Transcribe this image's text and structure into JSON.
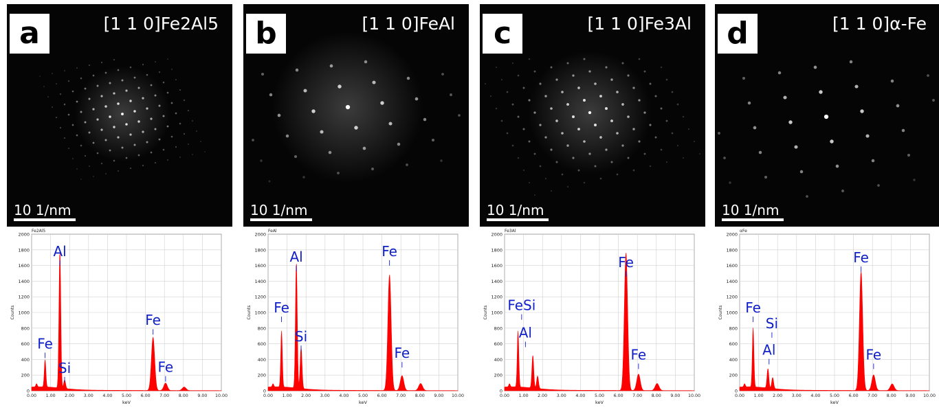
{
  "panels": [
    {
      "letter": "a",
      "zone_axis": "[1 1 0]Fe2Al5",
      "scale_bar": "10 1/nm",
      "eds_title": "Fe2Al5",
      "y_label": "Counts",
      "x_label": "keV",
      "labels": [
        {
          "text": "Al",
          "kev": 1.49,
          "counts": 1720
        },
        {
          "text": "Fe",
          "kev": 0.71,
          "counts": 540
        },
        {
          "text": "Si",
          "kev": 1.74,
          "counts": 230
        },
        {
          "text": "Fe",
          "kev": 6.4,
          "counts": 840
        },
        {
          "text": "Fe",
          "kev": 7.06,
          "counts": 240
        }
      ],
      "chart_data": {
        "type": "area",
        "xlim": [
          0,
          10
        ],
        "ylim": [
          0,
          2000
        ],
        "x_ticks": [
          "0.00",
          "1.00",
          "2.00",
          "3.00",
          "4.00",
          "5.00",
          "6.00",
          "7.00",
          "8.00",
          "9.00",
          "10.00"
        ],
        "y_ticks": [
          "0",
          "200",
          "400",
          "600",
          "800",
          "1000",
          "1200",
          "1400",
          "1600",
          "1800",
          "2000"
        ],
        "peaks": [
          {
            "kev": 0.26,
            "counts": 40
          },
          {
            "kev": 0.71,
            "counts": 350
          },
          {
            "kev": 1.49,
            "counts": 1760
          },
          {
            "kev": 1.74,
            "counts": 110
          },
          {
            "kev": 6.4,
            "counts": 680
          },
          {
            "kev": 7.06,
            "counts": 95
          },
          {
            "kev": 8.04,
            "counts": 45
          }
        ]
      }
    },
    {
      "letter": "b",
      "zone_axis": "[1 1 0]FeAl",
      "scale_bar": "10 1/nm",
      "eds_title": "FeAl",
      "y_label": "Counts",
      "x_label": "keV",
      "labels": [
        {
          "text": "Al",
          "kev": 1.49,
          "counts": 1650
        },
        {
          "text": "Fe",
          "kev": 0.71,
          "counts": 1000
        },
        {
          "text": "Si",
          "kev": 1.74,
          "counts": 630
        },
        {
          "text": "Fe",
          "kev": 6.4,
          "counts": 1720
        },
        {
          "text": "Fe",
          "kev": 7.06,
          "counts": 420
        }
      ],
      "chart_data": {
        "type": "area",
        "xlim": [
          0,
          10
        ],
        "ylim": [
          0,
          2000
        ],
        "x_ticks": [
          "0.00",
          "1.00",
          "2.00",
          "3.00",
          "4.00",
          "5.00",
          "6.00",
          "7.00",
          "8.00",
          "9.00",
          "10.00"
        ],
        "y_ticks": [
          "0",
          "200",
          "400",
          "600",
          "800",
          "1000",
          "1200",
          "1400",
          "1600",
          "1800",
          "2000"
        ],
        "peaks": [
          {
            "kev": 0.26,
            "counts": 40
          },
          {
            "kev": 0.71,
            "counts": 720
          },
          {
            "kev": 1.49,
            "counts": 1620
          },
          {
            "kev": 1.74,
            "counts": 530
          },
          {
            "kev": 6.4,
            "counts": 1480
          },
          {
            "kev": 7.06,
            "counts": 190
          },
          {
            "kev": 8.04,
            "counts": 90
          }
        ]
      }
    },
    {
      "letter": "c",
      "zone_axis": "[1 1 0]Fe3Al",
      "scale_bar": "10 1/nm",
      "eds_title": "Fe3Al",
      "y_label": "Counts",
      "x_label": "keV",
      "labels": [
        {
          "text": "FeSi",
          "kev": 0.9,
          "counts": 1030
        },
        {
          "text": "Al",
          "kev": 1.1,
          "counts": 680
        },
        {
          "text": "Fe",
          "kev": 6.4,
          "counts": 1580
        },
        {
          "text": "Fe",
          "kev": 7.06,
          "counts": 400
        }
      ],
      "chart_data": {
        "type": "area",
        "xlim": [
          0,
          10
        ],
        "ylim": [
          0,
          2000
        ],
        "x_ticks": [
          "0.00",
          "1.00",
          "2.00",
          "3.00",
          "4.00",
          "5.00",
          "6.00",
          "7.00",
          "8.00",
          "9.00",
          "10.00"
        ],
        "y_ticks": [
          "0",
          "200",
          "400",
          "600",
          "800",
          "1000",
          "1200",
          "1400",
          "1600",
          "1800",
          "2000"
        ],
        "peaks": [
          {
            "kev": 0.26,
            "counts": 40
          },
          {
            "kev": 0.71,
            "counts": 720
          },
          {
            "kev": 1.49,
            "counts": 420
          },
          {
            "kev": 1.74,
            "counts": 160
          },
          {
            "kev": 6.4,
            "counts": 1760
          },
          {
            "kev": 7.06,
            "counts": 210
          },
          {
            "kev": 8.04,
            "counts": 90
          }
        ]
      }
    },
    {
      "letter": "d",
      "zone_axis": "[1 1 0]α-Fe",
      "scale_bar": "10 1/nm",
      "eds_title": "αFe",
      "y_label": "Counts",
      "x_label": "keV",
      "labels": [
        {
          "text": "Fe",
          "kev": 0.71,
          "counts": 1000
        },
        {
          "text": "Si",
          "kev": 1.7,
          "counts": 800
        },
        {
          "text": "Al",
          "kev": 1.55,
          "counts": 460
        },
        {
          "text": "Fe",
          "kev": 6.4,
          "counts": 1640
        },
        {
          "text": "Fe",
          "kev": 7.06,
          "counts": 400
        }
      ],
      "chart_data": {
        "type": "area",
        "xlim": [
          0,
          10
        ],
        "ylim": [
          0,
          2000
        ],
        "x_ticks": [
          "0.00",
          "1.00",
          "2.00",
          "3.00",
          "4.00",
          "5.00",
          "6.00",
          "7.00",
          "8.00",
          "9.00",
          "10.00"
        ],
        "y_ticks": [
          "0",
          "200",
          "400",
          "600",
          "800",
          "1000",
          "1200",
          "1400",
          "1600",
          "1800",
          "2000"
        ],
        "peaks": [
          {
            "kev": 0.26,
            "counts": 40
          },
          {
            "kev": 0.71,
            "counts": 760
          },
          {
            "kev": 1.49,
            "counts": 250
          },
          {
            "kev": 1.74,
            "counts": 140
          },
          {
            "kev": 6.4,
            "counts": 1520
          },
          {
            "kev": 7.06,
            "counts": 200
          },
          {
            "kev": 8.04,
            "counts": 85
          }
        ]
      }
    }
  ],
  "colors": {
    "spectrum": "#ff0000",
    "label": "#1020c8",
    "grid": "#d0d0d0"
  }
}
